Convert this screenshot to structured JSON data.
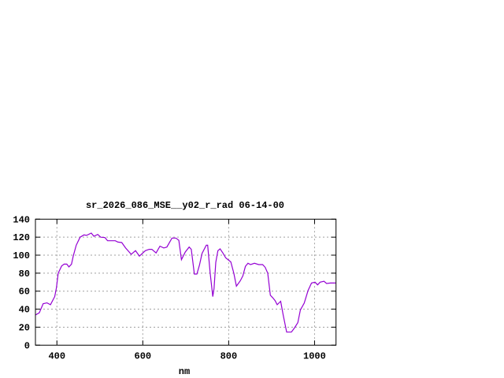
{
  "chart_data": {
    "type": "line",
    "title": "sr_2026_086_MSE__y02_r_rad 06-14-00",
    "xlabel": "nm",
    "ylabel": "",
    "xlim": [
      350,
      1050
    ],
    "ylim": [
      0,
      140
    ],
    "xticks": [
      400,
      600,
      800,
      1000
    ],
    "yticks": [
      0,
      20,
      40,
      60,
      80,
      100,
      120,
      140
    ],
    "grid": true,
    "legend": "none",
    "line_color": "#9400d3",
    "series": [
      {
        "x": [
          350,
          359,
          368,
          377,
          385,
          395,
          399,
          403,
          411,
          417,
          423,
          428,
          434,
          438,
          445,
          454,
          463,
          469,
          480,
          486,
          495,
          502,
          512,
          518,
          536,
          542,
          551,
          560,
          573,
          583,
          592,
          606,
          615,
          621,
          631,
          640,
          649,
          656,
          668,
          677,
          684,
          690,
          699,
          708,
          713,
          720,
          726,
          732,
          738,
          748,
          751,
          757,
          763,
          766,
          770,
          775,
          780,
          787,
          793,
          805,
          812,
          818,
          827,
          833,
          839,
          845,
          851,
          860,
          870,
          879,
          885,
          891,
          897,
          903,
          908,
          913,
          921,
          927,
          935,
          946,
          953,
          961,
          967,
          976,
          985,
          993,
          1001,
          1007,
          1013,
          1022,
          1028,
          1037,
          1049
        ],
        "y": [
          33.5,
          36,
          46,
          47,
          45,
          54,
          64,
          80,
          88,
          90,
          90,
          87,
          90,
          99,
          111,
          120,
          122.5,
          122,
          124.5,
          121,
          123,
          120,
          119.5,
          116,
          116,
          114.5,
          114,
          108,
          101,
          105,
          99,
          105,
          106.5,
          106.5,
          102.5,
          110,
          108,
          109,
          119,
          119,
          116.5,
          95,
          103.5,
          109,
          106.5,
          79,
          79,
          89,
          102,
          111,
          111,
          80,
          54,
          63,
          92,
          105,
          107,
          102,
          97,
          92.5,
          80,
          65.5,
          71.5,
          77,
          87.5,
          91,
          89.5,
          91,
          89.5,
          89.5,
          86.5,
          80,
          55.5,
          52.5,
          49.5,
          45,
          48.7,
          33.5,
          14.5,
          14.5,
          19,
          25,
          39,
          46.7,
          61,
          69,
          70,
          67,
          70,
          71,
          68.5,
          69,
          69
        ]
      }
    ]
  }
}
